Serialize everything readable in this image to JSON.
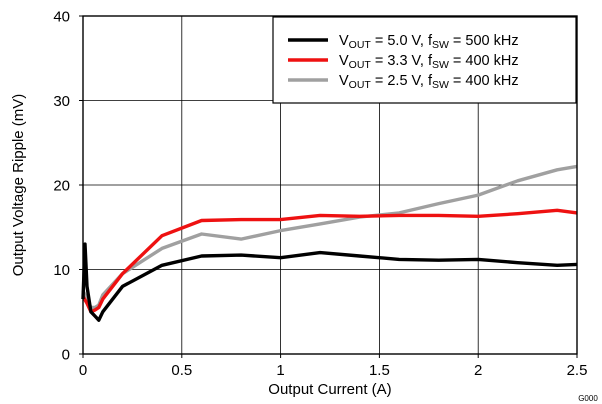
{
  "chart_data": {
    "type": "line",
    "xlabel": "Output Current (A)",
    "ylabel": "Output Voltage Ripple (mV)",
    "xlim": [
      0,
      2.5
    ],
    "ylim": [
      0,
      40
    ],
    "xticks": [
      "0",
      "0.5",
      "1",
      "1.5",
      "2",
      "2.5"
    ],
    "yticks": [
      "0",
      "10",
      "20",
      "30",
      "40"
    ],
    "grid": true,
    "legend_position": "top-right",
    "figure_id": "G000",
    "series": [
      {
        "name": "VOUT = 5.0 V, fSW = 500 kHz",
        "label": {
          "a": "V",
          "a_sub": "OUT",
          "b": " = 5.0 V, f",
          "b_sub": "SW",
          "c": " = 500 kHz"
        },
        "color": "#000000",
        "x": [
          0,
          0.01,
          0.02,
          0.04,
          0.06,
          0.08,
          0.1,
          0.2,
          0.4,
          0.6,
          0.8,
          1.0,
          1.2,
          1.4,
          1.6,
          1.8,
          2.0,
          2.2,
          2.4,
          2.5
        ],
        "y": [
          6.5,
          13.0,
          8.0,
          5.0,
          4.5,
          4.0,
          5.0,
          8.0,
          10.5,
          11.6,
          11.7,
          11.4,
          12.0,
          11.6,
          11.2,
          11.1,
          11.2,
          10.8,
          10.5,
          10.6
        ]
      },
      {
        "name": "VOUT = 3.3 V, fSW = 400 kHz",
        "label": {
          "a": "V",
          "a_sub": "OUT",
          "b": " = 3.3 V, f",
          "b_sub": "SW",
          "c": " = 400 kHz"
        },
        "color": "#ee1111",
        "x": [
          0,
          0.02,
          0.04,
          0.06,
          0.08,
          0.1,
          0.2,
          0.4,
          0.6,
          0.8,
          1.0,
          1.2,
          1.4,
          1.6,
          1.8,
          2.0,
          2.2,
          2.4,
          2.5
        ],
        "y": [
          6.8,
          6.0,
          5.0,
          5.2,
          5.5,
          6.5,
          9.5,
          14.0,
          15.8,
          15.9,
          15.9,
          16.4,
          16.3,
          16.4,
          16.4,
          16.3,
          16.6,
          17.0,
          16.7
        ]
      },
      {
        "name": "VOUT = 2.5 V, fSW = 400 kHz",
        "label": {
          "a": "V",
          "a_sub": "OUT",
          "b": " = 2.5 V, f",
          "b_sub": "SW",
          "c": " = 400 kHz"
        },
        "color": "#a0a0a0",
        "x": [
          0,
          0.02,
          0.04,
          0.06,
          0.08,
          0.1,
          0.2,
          0.4,
          0.6,
          0.8,
          1.0,
          1.2,
          1.4,
          1.6,
          1.8,
          2.0,
          2.2,
          2.4,
          2.5
        ],
        "y": [
          7.5,
          6.5,
          5.5,
          5.5,
          5.8,
          7.0,
          9.5,
          12.5,
          14.2,
          13.6,
          14.6,
          15.4,
          16.2,
          16.7,
          17.8,
          18.8,
          20.5,
          21.8,
          22.2
        ]
      }
    ]
  }
}
